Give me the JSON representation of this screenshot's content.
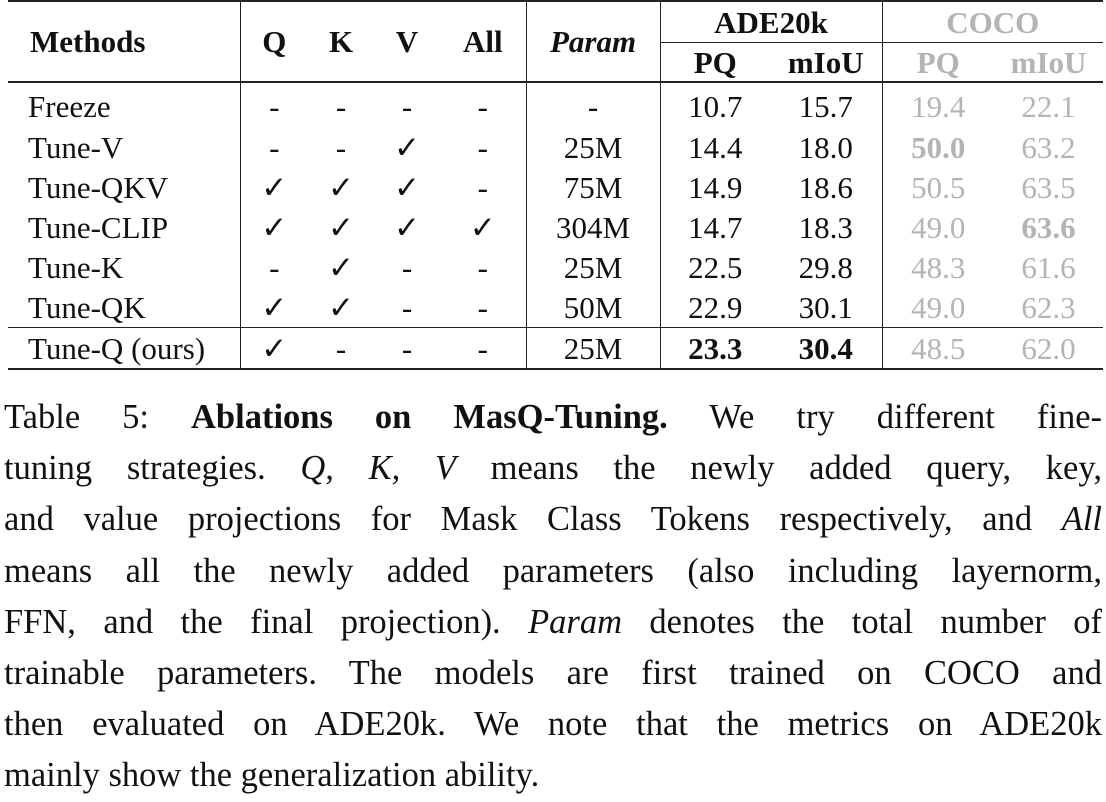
{
  "table": {
    "headers": {
      "methods": "Methods",
      "q": "Q",
      "k": "K",
      "v": "V",
      "all": "All",
      "param": "Param",
      "ade": "ADE20k",
      "coco": "COCO",
      "ade_pq": "PQ",
      "ade_miou": "mIoU",
      "coco_pq": "PQ",
      "coco_miou": "mIoU"
    },
    "rows": [
      {
        "method": "Freeze",
        "q": "-",
        "k": "-",
        "v": "-",
        "all": "-",
        "param": "-",
        "ade_pq": "10.7",
        "ade_miou": "15.7",
        "coco_pq": "19.4",
        "coco_miou": "22.1"
      },
      {
        "method": "Tune-V",
        "q": "-",
        "k": "-",
        "v": "✓",
        "all": "-",
        "param": "25M",
        "ade_pq": "14.4",
        "ade_miou": "18.0",
        "coco_pq": "50.0",
        "coco_miou": "63.2"
      },
      {
        "method": "Tune-QKV",
        "q": "✓",
        "k": "✓",
        "v": "✓",
        "all": "-",
        "param": "75M",
        "ade_pq": "14.9",
        "ade_miou": "18.6",
        "coco_pq": "50.5",
        "coco_miou": "63.5"
      },
      {
        "method": "Tune-CLIP",
        "q": "✓",
        "k": "✓",
        "v": "✓",
        "all": "✓",
        "param": "304M",
        "ade_pq": "14.7",
        "ade_miou": "18.3",
        "coco_pq": "49.0",
        "coco_miou": "63.6"
      },
      {
        "method": "Tune-K",
        "q": "-",
        "k": "✓",
        "v": "-",
        "all": "-",
        "param": "25M",
        "ade_pq": "22.5",
        "ade_miou": "29.8",
        "coco_pq": "48.3",
        "coco_miou": "61.6"
      },
      {
        "method": "Tune-QK",
        "q": "✓",
        "k": "✓",
        "v": "-",
        "all": "-",
        "param": "50M",
        "ade_pq": "22.9",
        "ade_miou": "30.1",
        "coco_pq": "49.0",
        "coco_miou": "62.3"
      },
      {
        "method": "Tune-Q (ours)",
        "q": "✓",
        "k": "-",
        "v": "-",
        "all": "-",
        "param": "25M",
        "ade_pq": "23.3",
        "ade_miou": "30.4",
        "coco_pq": "48.5",
        "coco_miou": "62.0"
      }
    ]
  },
  "caption": {
    "label": "Table 5: ",
    "title": "Ablations on MasQ-Tuning.",
    "l1_tail": " We try different fine-",
    "l2_a": "tuning strategies. ",
    "l2_qkv": "Q, K, V",
    "l2_b": " means the newly added query, key,",
    "l3_a": "and value projections for Mask Class Tokens respectively, and ",
    "l3_all": "All",
    "l4": "means all the newly added parameters (also including layernorm,",
    "l5_a": "FFN, and the final projection). ",
    "l5_param": "Param",
    "l5_b": " denotes the total number of",
    "l6": "trainable parameters. The models are first trained on COCO and",
    "l7": "then evaluated on ADE20k. We note that the metrics on ADE20k",
    "l8": "mainly show the generalization ability."
  }
}
